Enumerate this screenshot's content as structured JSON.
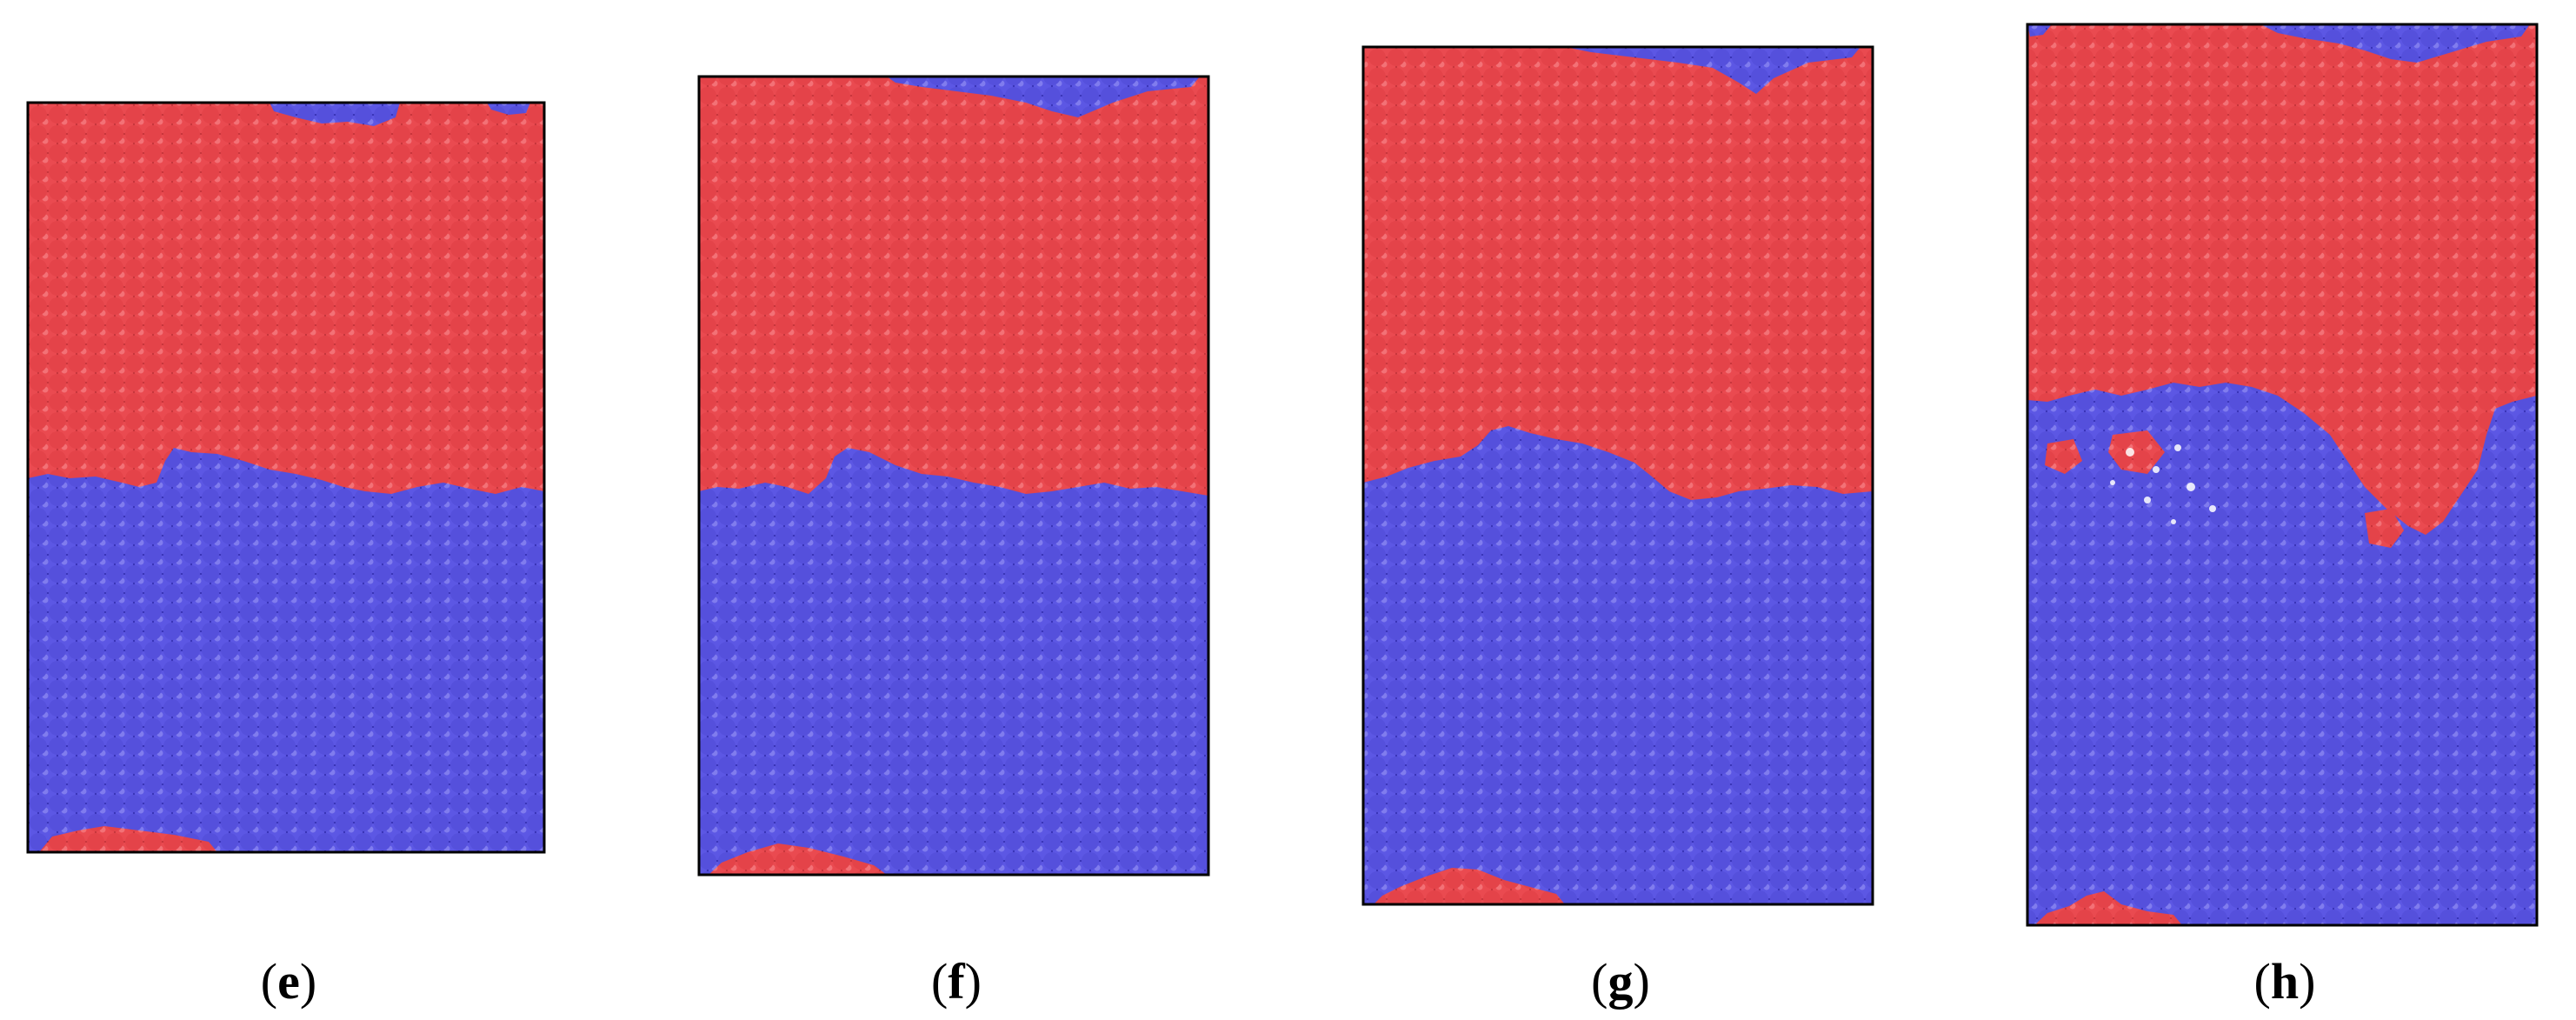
{
  "panels": [
    {
      "id": "e",
      "label_open": "(",
      "label_letter": "e",
      "label_close": ")",
      "interface_roughness": "low",
      "red_seed_at_bottom": true
    },
    {
      "id": "f",
      "label_open": "(",
      "label_letter": "f",
      "label_close": ")",
      "interface_roughness": "low",
      "red_seed_at_bottom": true
    },
    {
      "id": "g",
      "label_open": "(",
      "label_letter": "g",
      "label_close": ")",
      "interface_roughness": "medium",
      "red_seed_at_bottom": true
    },
    {
      "id": "h",
      "label_open": "(",
      "label_letter": "h",
      "label_close": ")",
      "interface_roughness": "high",
      "red_seed_at_bottom": true
    }
  ],
  "colors": {
    "red_phase": "#e8474d",
    "red_phase_dark": "#a82a30",
    "blue_phase": "#5a55e0",
    "blue_phase_dark": "#2e2a9a",
    "box_border": "#000000",
    "background": "#ffffff"
  }
}
